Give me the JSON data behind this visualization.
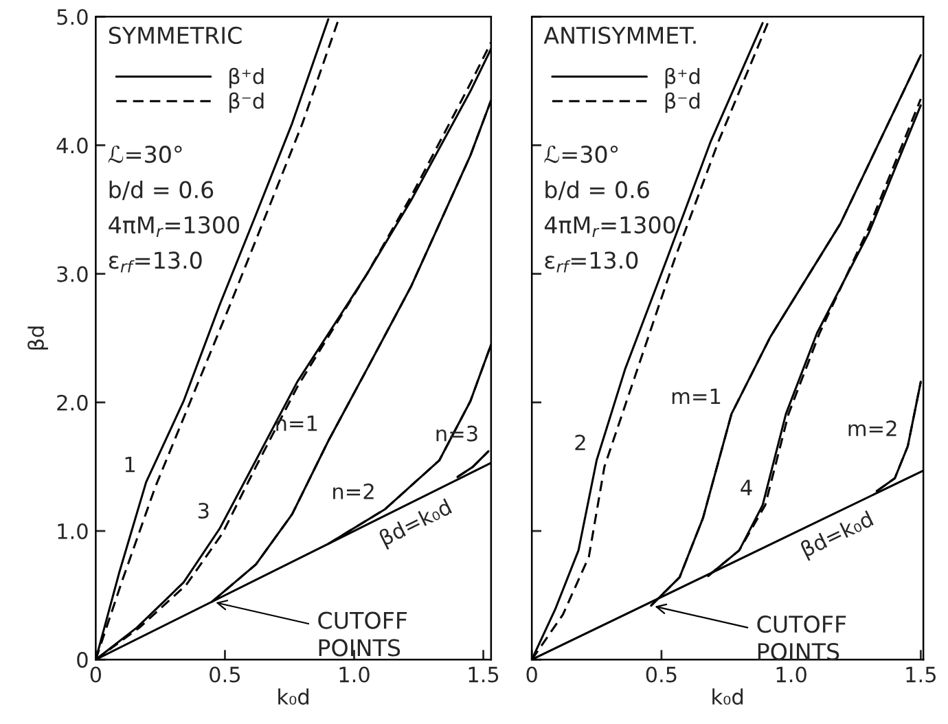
{
  "chart_data": [
    {
      "type": "line",
      "title": "SYMMETRIC",
      "xlabel": "k₀d",
      "ylabel": "βd",
      "xlim": [
        0,
        1.53
      ],
      "ylim": [
        0,
        5.0
      ],
      "xticks": [
        {
          "value": 0,
          "label": "0"
        },
        {
          "value": 0.5,
          "label": "0.5"
        },
        {
          "value": 1,
          "label": "1.0"
        },
        {
          "value": 1.5,
          "label": "1.5"
        }
      ],
      "yticks": [
        {
          "value": 0,
          "label": "0"
        },
        {
          "value": 1,
          "label": "1.0"
        },
        {
          "value": 2,
          "label": "2.0"
        },
        {
          "value": 3,
          "label": "3.0"
        },
        {
          "value": 4,
          "label": "4.0"
        },
        {
          "value": 5,
          "label": "5.0"
        }
      ],
      "legend": "top left",
      "grid": false,
      "series": [
        {
          "name": "β⁺d",
          "color": "#000000",
          "line_style": "solid",
          "x": [
            0,
            0.09,
            0.195,
            0.34,
            0.48,
            0.62,
            0.76,
            0.9
          ],
          "values": [
            0,
            0.67,
            1.38,
            2.01,
            2.76,
            3.46,
            4.17,
            4.98
          ]
        },
        {
          "name": "β⁻d",
          "color": "#000000",
          "line_style": "dashed",
          "x": [
            0,
            0.1,
            0.23,
            0.52,
            0.8,
            0.94
          ],
          "values": [
            0,
            0.6,
            1.34,
            2.76,
            4.17,
            4.98
          ]
        },
        {
          "color": "#000000",
          "line_style": "solid",
          "x": [
            0,
            0.16,
            0.34,
            0.48,
            0.62,
            0.78,
            1.05,
            1.22,
            1.45,
            1.53
          ],
          "values": [
            0,
            0.25,
            0.6,
            1.02,
            1.55,
            2.16,
            3.0,
            3.57,
            4.42,
            4.75
          ]
        },
        {
          "color": "#000000",
          "line_style": "dashed",
          "x": [
            0,
            0.17,
            0.35,
            0.49,
            0.62,
            0.78,
            1.05,
            1.22,
            1.45,
            1.53
          ],
          "values": [
            0,
            0.25,
            0.58,
            0.98,
            1.5,
            2.12,
            3.0,
            3.6,
            4.48,
            4.8
          ]
        },
        {
          "color": "#000000",
          "line_style": "solid",
          "x": [
            0.45,
            0.62,
            0.76,
            0.9,
            1.05,
            1.22,
            1.45,
            1.53
          ],
          "values": [
            0.45,
            0.74,
            1.13,
            1.7,
            2.26,
            2.9,
            3.92,
            4.35
          ]
        },
        {
          "color": "#000000",
          "line_style": "dashed",
          "x": [
            0.45,
            0.62,
            0.76,
            0.9,
            1.05,
            1.22,
            1.45,
            1.53
          ],
          "values": [
            0.45,
            0.74,
            1.13,
            1.7,
            2.26,
            2.9,
            3.92,
            4.35
          ]
        },
        {
          "color": "#000000",
          "line_style": "solid",
          "x": [
            0.9,
            1.12,
            1.33,
            1.45,
            1.53
          ],
          "values": [
            0.9,
            1.17,
            1.55,
            2.01,
            2.45
          ]
        },
        {
          "color": "#000000",
          "line_style": "dashed",
          "x": [
            0.9,
            1.12,
            1.33,
            1.45,
            1.53
          ],
          "values": [
            0.9,
            1.17,
            1.55,
            2.01,
            2.45
          ]
        },
        {
          "color": "#000000",
          "line_style": "solid",
          "x": [
            1.4,
            1.46,
            1.52
          ],
          "values": [
            1.42,
            1.5,
            1.62
          ]
        },
        {
          "color": "#000000",
          "line_style": "dashed",
          "x": [
            1.4,
            1.46,
            1.52
          ],
          "values": [
            1.42,
            1.5,
            1.62
          ]
        },
        {
          "color": "#000000",
          "line_style": "solid",
          "x": [
            0,
            1.53
          ],
          "values": [
            0,
            1.53
          ]
        }
      ],
      "annotations": [
        "ℒ=30°",
        "b/d = 0.6",
        "4πM$_{r}$=1300",
        "ε$_{rf}$=13.0",
        {
          "text": "1",
          "x": 0.195,
          "y": 1.38
        },
        {
          "text": "3",
          "x": 0.48,
          "y": 1.02
        },
        {
          "text": "n=1",
          "x": 0.9,
          "y": 1.7
        },
        {
          "text": "n=2",
          "x": 1.12,
          "y": 1.17
        },
        {
          "text": "n=3",
          "x": 1.52,
          "y": 1.62
        },
        {
          "text": "βd=k₀d",
          "x": 1.2,
          "y": 1.2
        },
        {
          "text": "CUTOFF\nPOINTS",
          "x": 0.45,
          "y": 0.45
        }
      ]
    },
    {
      "type": "line",
      "title": "ANTISYMMET.",
      "xlabel": "k₀d",
      "xlim": [
        0,
        1.51
      ],
      "ylim": [
        0,
        5.0
      ],
      "xticks": [
        {
          "value": 0,
          "label": "0"
        },
        0.5,
        {
          "value": 1,
          "label": "1.0"
        },
        1.5
      ],
      "yticks": [
        0,
        1.0,
        2.0,
        3.0,
        4.0,
        5.0
      ],
      "tick_labels": "x",
      "legend": "top left",
      "grid": false,
      "series": [
        {
          "name": "β⁺d",
          "color": "#000000",
          "line_style": "solid",
          "x": [
            0,
            0.09,
            0.18,
            0.25,
            0.36,
            0.52,
            0.69,
            0.89
          ],
          "values": [
            0,
            0.39,
            0.85,
            1.55,
            2.26,
            3.11,
            4.03,
            4.95
          ]
        },
        {
          "name": "β⁻d",
          "color": "#000000",
          "line_style": "dashed",
          "x": [
            0,
            0.12,
            0.22,
            0.28,
            0.55,
            0.72,
            0.91
          ],
          "values": [
            0,
            0.35,
            0.8,
            1.5,
            3.11,
            4.03,
            4.95
          ]
        },
        {
          "color": "#000000",
          "line_style": "solid",
          "x": [
            0.46,
            0.57,
            0.66,
            0.77,
            0.92,
            1.19,
            1.5
          ],
          "values": [
            0.42,
            0.64,
            1.1,
            1.91,
            2.51,
            3.39,
            4.7
          ]
        },
        {
          "color": "#000000",
          "line_style": "dashed",
          "x": [
            0.46,
            0.57,
            0.66,
            0.77,
            0.92,
            1.19,
            1.5
          ],
          "values": [
            0.42,
            0.64,
            1.1,
            1.91,
            2.51,
            3.39,
            4.7
          ]
        },
        {
          "color": "#000000",
          "line_style": "solid",
          "x": [
            0.68,
            0.8,
            0.89,
            0.98,
            1.1,
            1.3,
            1.5
          ],
          "values": [
            0.65,
            0.85,
            1.2,
            1.91,
            2.54,
            3.32,
            4.31
          ]
        },
        {
          "color": "#000000",
          "line_style": "dashed",
          "x": [
            0.68,
            0.8,
            0.9,
            0.99,
            1.11,
            1.3,
            1.5
          ],
          "values": [
            0.65,
            0.85,
            1.2,
            1.91,
            2.54,
            3.36,
            4.36
          ]
        },
        {
          "color": "#000000",
          "line_style": "solid",
          "x": [
            1.33,
            1.4,
            1.45,
            1.5
          ],
          "values": [
            1.31,
            1.41,
            1.66,
            2.16
          ]
        },
        {
          "color": "#000000",
          "line_style": "dashed",
          "x": [
            1.33,
            1.4,
            1.45,
            1.5
          ],
          "values": [
            1.31,
            1.41,
            1.66,
            2.16
          ]
        },
        {
          "color": "#000000",
          "line_style": "solid",
          "x": [
            0,
            1.51
          ],
          "values": [
            0,
            1.47
          ]
        }
      ],
      "annotations": [
        "ℒ=30°",
        "b/d = 0.6",
        "4πM$_{r}$=1300",
        "ε$_{rf}$=13.0",
        {
          "text": "2",
          "x": 0.25,
          "y": 1.55
        },
        {
          "text": "m=1",
          "x": 0.77,
          "y": 1.91
        },
        {
          "text": "4",
          "x": 0.89,
          "y": 1.2
        },
        {
          "text": "m=2",
          "x": 1.45,
          "y": 1.66
        },
        {
          "text": "βd=k₀d",
          "x": 1.14,
          "y": 1.11
        },
        {
          "text": "CUTOFF\nPOINTS",
          "x": 0.46,
          "y": 0.42
        }
      ]
    }
  ]
}
